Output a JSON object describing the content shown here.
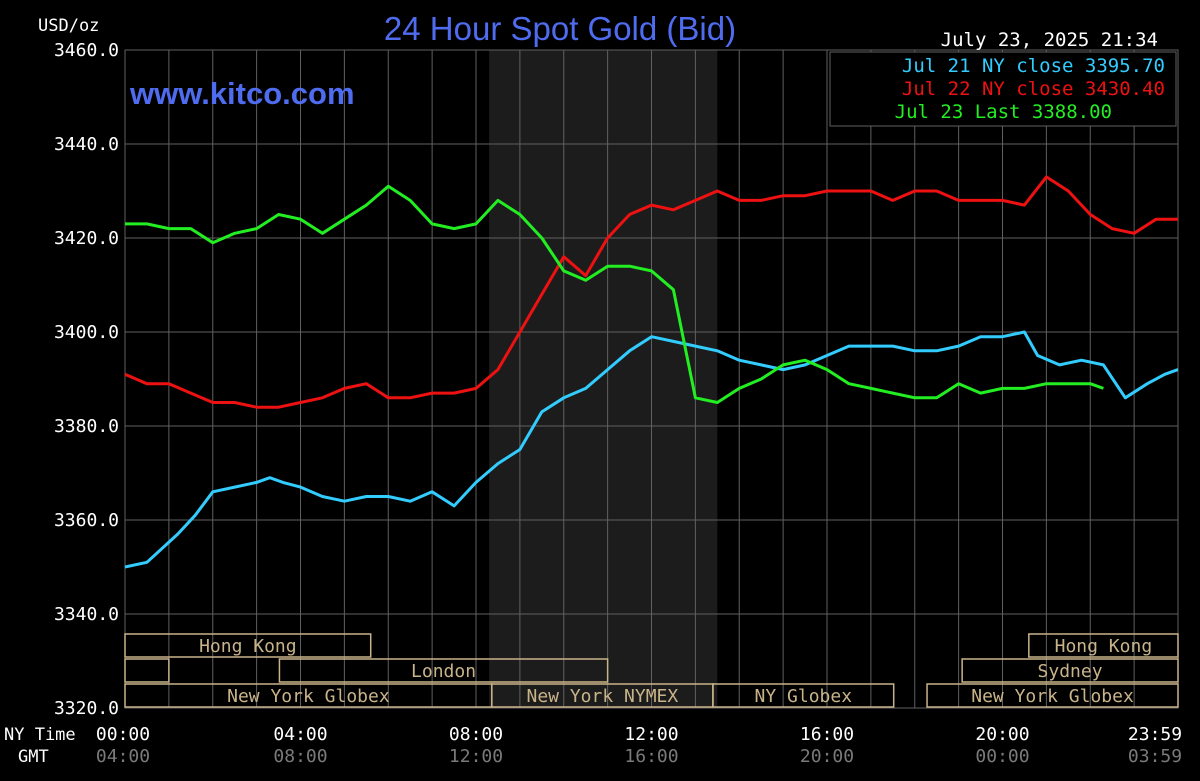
{
  "header": {
    "units": "USD/oz",
    "title": "24 Hour Spot Gold (Bid)",
    "timestamp": "July 23, 2025 21:34",
    "watermark": "www.kitco.com"
  },
  "axis_labels": {
    "ny_time": "NY Time",
    "gmt": "GMT"
  },
  "colors": {
    "background": "#000000",
    "grid": "#606060",
    "title": "#4f6cf0",
    "watermark": "#4f6cf0",
    "jul21": "#33ccff",
    "jul22": "#ee1111",
    "jul23": "#22ee22",
    "session_box": "#c9b48a",
    "nymex_shade": "#1c1c1c"
  },
  "sessions": [
    {
      "name": "Hong Kong",
      "start": 0,
      "end": 14.0,
      "row": 0
    },
    {
      "name": "",
      "start": 0,
      "end": 2.5,
      "row": 1
    },
    {
      "name": "London",
      "start": 8.8,
      "end": 27.5,
      "row": 1
    },
    {
      "name": "New York Globex",
      "start": 0,
      "end": 20.9,
      "row": 2
    },
    {
      "name": "New York NYMEX",
      "start": 20.9,
      "end": 33.5,
      "row": 2
    },
    {
      "name": "NY Globex",
      "start": 33.5,
      "end": 43.8,
      "row": 2
    },
    {
      "name": "Hong Kong",
      "start": 51.5,
      "end": 60.0,
      "row": 0
    },
    {
      "name": "Sydney",
      "start": 47.7,
      "end": 60.0,
      "row": 1
    },
    {
      "name": "New York Globex",
      "start": 45.7,
      "end": 60.0,
      "row": 2
    }
  ],
  "chart_data": {
    "type": "line",
    "title": "24 Hour Spot Gold (Bid)",
    "ylabel": "USD/oz",
    "xlabel": "NY Time",
    "ylim": [
      3320,
      3460
    ],
    "xlim": [
      0,
      24
    ],
    "yticks": [
      "3460.0",
      "3440.0",
      "3420.0",
      "3400.0",
      "3380.0",
      "3360.0",
      "3340.0",
      "3320.0"
    ],
    "ytick_values": [
      3460,
      3440,
      3420,
      3400,
      3380,
      3360,
      3340,
      3320
    ],
    "xticks_ny": [
      "00:00",
      "04:00",
      "08:00",
      "12:00",
      "16:00",
      "20:00",
      "23:59"
    ],
    "xticks_gmt": [
      "04:00",
      "08:00",
      "12:00",
      "16:00",
      "20:00",
      "00:00",
      "03:59"
    ],
    "xtick_values": [
      0,
      4,
      8,
      12,
      16,
      20,
      24
    ],
    "nymex_session": [
      8.3,
      13.5
    ],
    "grid": true,
    "legend": "top-right",
    "legend_entries": [
      {
        "label": "Jul 21 NY close 3395.70",
        "series": "jul21"
      },
      {
        "label": "Jul 22 NY close 3430.40",
        "series": "jul22"
      },
      {
        "label": "Jul 23 Last 3388.00",
        "series": "jul23"
      }
    ],
    "series": [
      {
        "name": "Jul 21 NY close 3395.70",
        "key": "jul21",
        "points": [
          [
            0,
            3350
          ],
          [
            0.5,
            3351
          ],
          [
            1.2,
            3357
          ],
          [
            1.6,
            3361
          ],
          [
            2,
            3366
          ],
          [
            2.5,
            3367
          ],
          [
            3,
            3368
          ],
          [
            3.3,
            3369
          ],
          [
            3.6,
            3368
          ],
          [
            4,
            3367
          ],
          [
            4.5,
            3365
          ],
          [
            5,
            3364
          ],
          [
            5.5,
            3365
          ],
          [
            6,
            3365
          ],
          [
            6.5,
            3364
          ],
          [
            7,
            3366
          ],
          [
            7.5,
            3363
          ],
          [
            8,
            3368
          ],
          [
            8.5,
            3372
          ],
          [
            9,
            3375
          ],
          [
            9.5,
            3383
          ],
          [
            10,
            3386
          ],
          [
            10.5,
            3388
          ],
          [
            11,
            3392
          ],
          [
            11.5,
            3396
          ],
          [
            12,
            3399
          ],
          [
            12.5,
            3398
          ],
          [
            13,
            3397
          ],
          [
            13.5,
            3396
          ],
          [
            14,
            3394
          ],
          [
            14.5,
            3393
          ],
          [
            15,
            3392
          ],
          [
            15.5,
            3393
          ],
          [
            16,
            3395
          ],
          [
            16.5,
            3397
          ],
          [
            17,
            3397
          ],
          [
            17.5,
            3397
          ],
          [
            18,
            3396
          ],
          [
            18.5,
            3396
          ],
          [
            19,
            3397
          ],
          [
            19.5,
            3399
          ],
          [
            20,
            3399
          ],
          [
            20.5,
            3400
          ],
          [
            20.8,
            3395
          ],
          [
            21.3,
            3393
          ],
          [
            21.8,
            3394
          ],
          [
            22.3,
            3393
          ],
          [
            22.8,
            3386
          ],
          [
            23.3,
            3389
          ],
          [
            23.7,
            3391
          ],
          [
            24,
            3392
          ]
        ]
      },
      {
        "name": "Jul 22 NY close 3430.40",
        "key": "jul22",
        "points": [
          [
            0,
            3391
          ],
          [
            0.5,
            3389
          ],
          [
            1,
            3389
          ],
          [
            1.5,
            3387
          ],
          [
            2,
            3385
          ],
          [
            2.5,
            3385
          ],
          [
            3,
            3384
          ],
          [
            3.5,
            3384
          ],
          [
            4,
            3385
          ],
          [
            4.5,
            3386
          ],
          [
            5,
            3388
          ],
          [
            5.5,
            3389
          ],
          [
            6,
            3386
          ],
          [
            6.5,
            3386
          ],
          [
            7,
            3387
          ],
          [
            7.5,
            3387
          ],
          [
            8,
            3388
          ],
          [
            8.5,
            3392
          ],
          [
            9,
            3400
          ],
          [
            9.5,
            3408
          ],
          [
            10,
            3416
          ],
          [
            10.5,
            3412
          ],
          [
            11,
            3420
          ],
          [
            11.5,
            3425
          ],
          [
            12,
            3427
          ],
          [
            12.5,
            3426
          ],
          [
            13,
            3428
          ],
          [
            13.5,
            3430
          ],
          [
            14,
            3428
          ],
          [
            14.5,
            3428
          ],
          [
            15,
            3429
          ],
          [
            15.5,
            3429
          ],
          [
            16,
            3430
          ],
          [
            16.5,
            3430
          ],
          [
            17,
            3430
          ],
          [
            17.5,
            3428
          ],
          [
            18,
            3430
          ],
          [
            18.5,
            3430
          ],
          [
            19,
            3428
          ],
          [
            19.5,
            3428
          ],
          [
            20,
            3428
          ],
          [
            20.5,
            3427
          ],
          [
            21,
            3433
          ],
          [
            21.5,
            3430
          ],
          [
            22,
            3425
          ],
          [
            22.5,
            3422
          ],
          [
            23,
            3421
          ],
          [
            23.5,
            3424
          ],
          [
            24,
            3424
          ]
        ]
      },
      {
        "name": "Jul 23 Last 3388.00",
        "key": "jul23",
        "points": [
          [
            0,
            3423
          ],
          [
            0.5,
            3423
          ],
          [
            1,
            3422
          ],
          [
            1.5,
            3422
          ],
          [
            2,
            3419
          ],
          [
            2.5,
            3421
          ],
          [
            3,
            3422
          ],
          [
            3.5,
            3425
          ],
          [
            4,
            3424
          ],
          [
            4.5,
            3421
          ],
          [
            5,
            3424
          ],
          [
            5.5,
            3427
          ],
          [
            6,
            3431
          ],
          [
            6.5,
            3428
          ],
          [
            7,
            3423
          ],
          [
            7.5,
            3422
          ],
          [
            8,
            3423
          ],
          [
            8.5,
            3428
          ],
          [
            9,
            3425
          ],
          [
            9.5,
            3420
          ],
          [
            10,
            3413
          ],
          [
            10.5,
            3411
          ],
          [
            11,
            3414
          ],
          [
            11.5,
            3414
          ],
          [
            12,
            3413
          ],
          [
            12.5,
            3409
          ],
          [
            13,
            3386
          ],
          [
            13.5,
            3385
          ],
          [
            14,
            3388
          ],
          [
            14.5,
            3390
          ],
          [
            15,
            3393
          ],
          [
            15.5,
            3394
          ],
          [
            16,
            3392
          ],
          [
            16.5,
            3389
          ],
          [
            17,
            3388
          ],
          [
            17.5,
            3387
          ],
          [
            18,
            3386
          ],
          [
            18.5,
            3386
          ],
          [
            19,
            3389
          ],
          [
            19.5,
            3387
          ],
          [
            20,
            3388
          ],
          [
            20.5,
            3388
          ],
          [
            21,
            3389
          ],
          [
            21.5,
            3389
          ],
          [
            22,
            3389
          ],
          [
            22.3,
            3388
          ]
        ]
      }
    ]
  }
}
